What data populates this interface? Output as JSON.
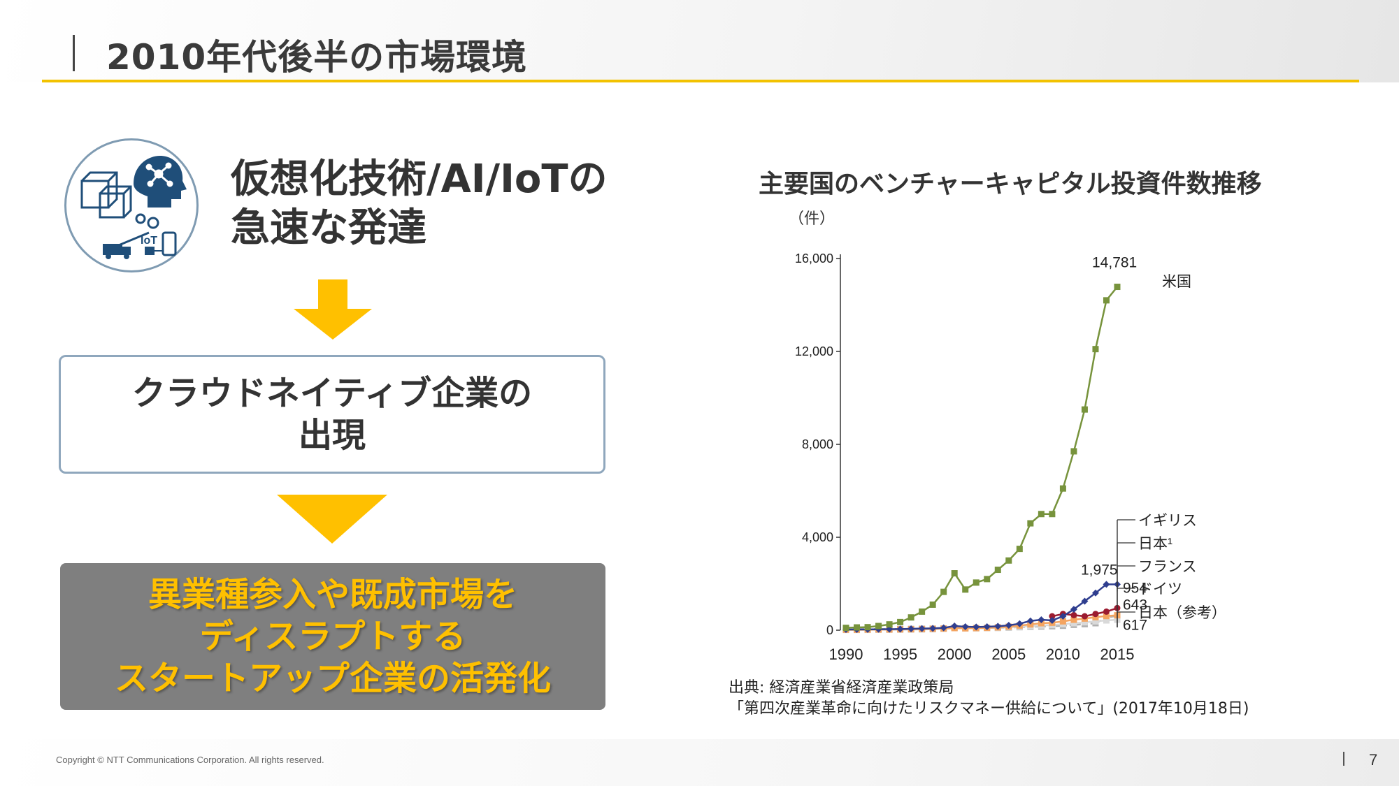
{
  "slide": {
    "title": "2010年代後半の市場環境",
    "tech_title_line1": "仮想化技術/AI/IoTの",
    "tech_title_line2": "急速な発達",
    "icon_badge": "IoT",
    "cloud_line1": "クラウドネイティブ企業の",
    "cloud_line2": "出現",
    "startup_line1": "異業種参入や既成市場を",
    "startup_line2": "ディスラプトする",
    "startup_line3": "スタートアップ企業の活発化",
    "source_line1": "出典: 経済産業省経済産業政策局",
    "source_line2": "「第四次産業革命に向けたリスクマネー供給について」(2017年10月18日)",
    "copyright": "Copyright © NTT Communications Corporation. All rights reserved.",
    "page_number": "7"
  },
  "colors": {
    "accent_yellow": "#f2c200",
    "arrow_yellow": "#ffc000",
    "usa": "#77933c",
    "uk": "#2f3e8f",
    "japan": "#9b1b30",
    "france": "#f4a460",
    "germany": "#d9d9d9",
    "japan_ref": "#b0b0b0"
  },
  "chart_data": {
    "type": "line",
    "title": "主要国のベンチャーキャピタル投資件数推移",
    "ylabel": "（件）",
    "xlabel": "",
    "ylim": [
      0,
      16000
    ],
    "yticks": [
      0,
      4000,
      8000,
      12000,
      16000
    ],
    "ytick_labels": [
      "0",
      "4,000",
      "8,000",
      "12,000",
      "16,000"
    ],
    "xlim": [
      1990,
      2015
    ],
    "xticks": [
      1990,
      1995,
      2000,
      2005,
      2010,
      2015
    ],
    "xtick_labels": [
      "1990",
      "1995",
      "2000",
      "2005",
      "2010",
      "2015"
    ],
    "series": [
      {
        "name": "米国",
        "color_key": "usa",
        "marker": "square",
        "x": [
          1990,
          1991,
          1992,
          1993,
          1994,
          1995,
          1996,
          1997,
          1998,
          1999,
          2000,
          2001,
          2002,
          2003,
          2004,
          2005,
          2006,
          2007,
          2008,
          2009,
          2010,
          2011,
          2012,
          2013,
          2014,
          2015
        ],
        "values": [
          100,
          120,
          130,
          180,
          250,
          350,
          550,
          800,
          1100,
          1650,
          2450,
          1750,
          2050,
          2200,
          2600,
          3000,
          3500,
          4600,
          5000,
          5000,
          6100,
          7700,
          9500,
          12100,
          14200,
          14781
        ]
      },
      {
        "name": "イギリス",
        "color_key": "uk",
        "marker": "diamond",
        "x": [
          1990,
          1991,
          1992,
          1993,
          1994,
          1995,
          1996,
          1997,
          1998,
          1999,
          2000,
          2001,
          2002,
          2003,
          2004,
          2005,
          2006,
          2007,
          2008,
          2009,
          2010,
          2011,
          2012,
          2013,
          2014,
          2015
        ],
        "values": [
          30,
          30,
          35,
          40,
          45,
          50,
          60,
          70,
          80,
          100,
          180,
          150,
          140,
          150,
          170,
          210,
          280,
          400,
          450,
          420,
          600,
          900,
          1250,
          1600,
          1975,
          1975
        ]
      },
      {
        "name": "日本¹",
        "color_key": "japan",
        "marker": "circle",
        "x": [
          2009,
          2010,
          2011,
          2012,
          2013,
          2014,
          2015
        ],
        "values": [
          600,
          700,
          650,
          600,
          700,
          800,
          954
        ]
      },
      {
        "name": "フランス",
        "color_key": "france",
        "marker": "square",
        "x": [
          1990,
          1991,
          1992,
          1993,
          1994,
          1995,
          1996,
          1997,
          1998,
          1999,
          2000,
          2001,
          2002,
          2003,
          2004,
          2005,
          2006,
          2007,
          2008,
          2009,
          2010,
          2011,
          2012,
          2013,
          2014,
          2015
        ],
        "values": [
          20,
          20,
          25,
          30,
          30,
          35,
          40,
          50,
          60,
          70,
          90,
          80,
          90,
          100,
          120,
          150,
          200,
          250,
          300,
          320,
          380,
          450,
          500,
          560,
          610,
          643
        ]
      },
      {
        "name": "ドイツ",
        "color_key": "germany",
        "marker": "square",
        "x": [
          1990,
          1991,
          1992,
          1993,
          1994,
          1995,
          1996,
          1997,
          1998,
          1999,
          2000,
          2001,
          2002,
          2003,
          2004,
          2005,
          2006,
          2007,
          2008,
          2009,
          2010,
          2011,
          2012,
          2013,
          2014,
          2015
        ],
        "values": [
          10,
          10,
          12,
          15,
          18,
          20,
          25,
          30,
          40,
          60,
          90,
          80,
          85,
          90,
          100,
          120,
          150,
          180,
          200,
          220,
          260,
          300,
          340,
          380,
          420,
          450
        ]
      },
      {
        "name": "日本（参考）",
        "color_key": "japan_ref",
        "marker": "square",
        "x": [
          1990,
          1991,
          1992,
          1993,
          1994,
          1995,
          1996,
          1997,
          1998,
          1999,
          2000,
          2001,
          2002,
          2003,
          2004,
          2005,
          2006,
          2007,
          2008,
          2009,
          2010,
          2011,
          2012,
          2013,
          2014,
          2015
        ],
        "values": [
          60,
          55,
          50,
          45,
          45,
          50,
          55,
          60,
          65,
          70,
          100,
          90,
          85,
          90,
          100,
          110,
          130,
          150,
          160,
          170,
          190,
          230,
          260,
          300,
          540,
          617
        ]
      }
    ],
    "data_labels": [
      {
        "series": "米国",
        "x": 2015,
        "value": 14781,
        "text": "14,781"
      },
      {
        "series": "イギリス",
        "x": 2015,
        "value": 1975,
        "text": "1,975"
      },
      {
        "series": "日本¹",
        "x": 2015,
        "value": 954,
        "text": "954"
      },
      {
        "series": "フランス",
        "x": 2015,
        "value": 643,
        "text": "643"
      },
      {
        "series": "日本（参考）",
        "x": 2015,
        "value": 617,
        "text": "617"
      }
    ],
    "legend_placement": "right",
    "grid": false
  }
}
